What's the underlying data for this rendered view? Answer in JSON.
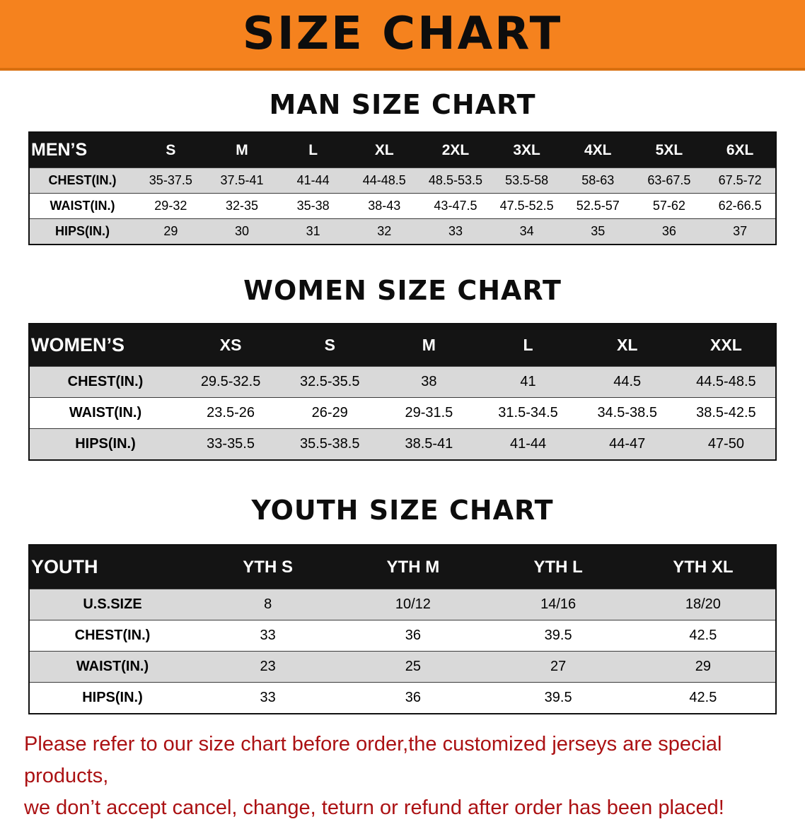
{
  "banner": {
    "title": "SIZE CHART",
    "background_color": "#F5821E"
  },
  "colors": {
    "header_row": "#141414",
    "stripe_row": "#D9D9D9",
    "disclaimer_text": "#AB1113"
  },
  "sections": [
    {
      "id": "men",
      "heading": "MAN SIZE CHART",
      "table": {
        "header": [
          "MEN’S",
          "S",
          "M",
          "L",
          "XL",
          "2XL",
          "3XL",
          "4XL",
          "5XL",
          "6XL"
        ],
        "rows": [
          [
            "CHEST(IN.)",
            "35-37.5",
            "37.5-41",
            "41-44",
            "44-48.5",
            "48.5-53.5",
            "53.5-58",
            "58-63",
            "63-67.5",
            "67.5-72"
          ],
          [
            "WAIST(IN.)",
            "29-32",
            "32-35",
            "35-38",
            "38-43",
            "43-47.5",
            "47.5-52.5",
            "52.5-57",
            "57-62",
            "62-66.5"
          ],
          [
            "HIPS(IN.)",
            "29",
            "30",
            "31",
            "32",
            "33",
            "34",
            "35",
            "36",
            "37"
          ]
        ]
      }
    },
    {
      "id": "women",
      "heading": "WOMEN SIZE CHART",
      "table": {
        "header": [
          "WOMEN’S",
          "XS",
          "S",
          "M",
          "L",
          "XL",
          "XXL"
        ],
        "rows": [
          [
            "CHEST(IN.)",
            "29.5-32.5",
            "32.5-35.5",
            "38",
            "41",
            "44.5",
            "44.5-48.5"
          ],
          [
            "WAIST(IN.)",
            "23.5-26",
            "26-29",
            "29-31.5",
            "31.5-34.5",
            "34.5-38.5",
            "38.5-42.5"
          ],
          [
            "HIPS(IN.)",
            "33-35.5",
            "35.5-38.5",
            "38.5-41",
            "41-44",
            "44-47",
            "47-50"
          ]
        ]
      }
    },
    {
      "id": "youth",
      "heading": "YOUTH SIZE CHART",
      "table": {
        "header": [
          "YOUTH",
          "YTH S",
          "YTH M",
          "YTH L",
          "YTH XL"
        ],
        "rows": [
          [
            "U.S.SIZE",
            "8",
            "10/12",
            "14/16",
            "18/20"
          ],
          [
            "CHEST(IN.)",
            "33",
            "36",
            "39.5",
            "42.5"
          ],
          [
            "WAIST(IN.)",
            "23",
            "25",
            "27",
            "29"
          ],
          [
            "HIPS(IN.)",
            "33",
            "36",
            "39.5",
            "42.5"
          ]
        ]
      }
    }
  ],
  "disclaimer": {
    "line1": "Please refer to our size chart before order,the customized jerseys are special products,",
    "line2": "we don’t accept cancel, change, teturn or refund after order has been placed!"
  }
}
